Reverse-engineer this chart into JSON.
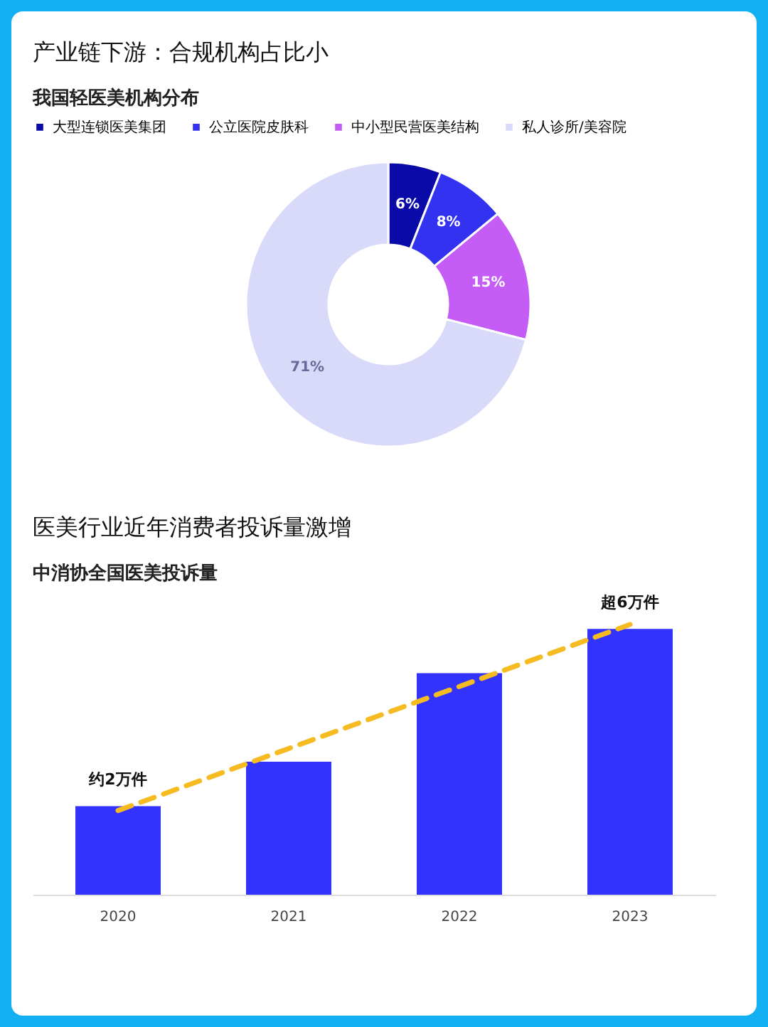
{
  "chart_data": [
    {
      "type": "donut",
      "title": "产业链下游：合规机构占比小",
      "subtitle": "我国轻医美机构分布",
      "categories": [
        "大型连锁医美集团",
        "公立医院皮肤科",
        "中小型民营医美结构",
        "私人诊所/美容院"
      ],
      "values": [
        6,
        8,
        15,
        71
      ],
      "value_labels": [
        "6%",
        "8%",
        "15%",
        "71%"
      ],
      "colors": [
        "#0a0aa8",
        "#3232f0",
        "#c45cf5",
        "#d9d9fa"
      ],
      "legend": "top"
    },
    {
      "type": "bar",
      "title": "医美行业近年消费者投诉量激增",
      "subtitle": "中消协全国医美投诉量",
      "categories": [
        "2020",
        "2021",
        "2022",
        "2023"
      ],
      "grid": false,
      "series": [
        {
          "values": [
            2,
            3,
            5,
            6
          ],
          "color": "#3333ff",
          "value_labels": [
            "约2万件",
            null,
            null,
            "超6万件"
          ]
        },
        {
          "type": "line",
          "values": [
            1.9,
            3.3,
            4.7,
            6.1
          ],
          "color": "#f7bb22",
          "line_style": "dashed"
        }
      ]
    }
  ]
}
